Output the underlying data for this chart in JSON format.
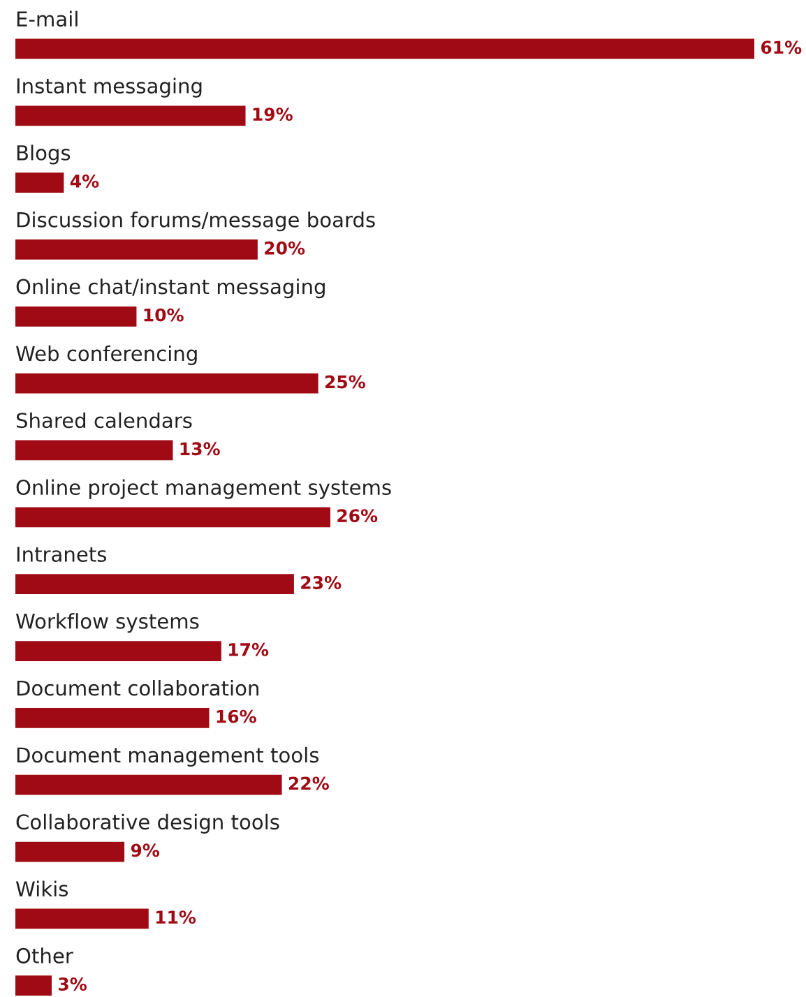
{
  "chart_data": {
    "type": "bar",
    "orientation": "horizontal",
    "color": "#a00a14",
    "categories": [
      "E-mail",
      "Instant messaging",
      "Blogs",
      "Discussion forums/message boards",
      "Online chat/instant messaging",
      "Web conferencing",
      "Shared calendars",
      "Online project management systems",
      "Intranets",
      "Workflow systems",
      "Document collaboration",
      "Document management tools",
      "Collaborative design tools",
      "Wikis",
      "Other"
    ],
    "values": [
      61,
      19,
      4,
      20,
      10,
      25,
      13,
      26,
      23,
      17,
      16,
      22,
      9,
      11,
      3
    ],
    "value_labels": [
      "61%",
      "19%",
      "4%",
      "20%",
      "10%",
      "25%",
      "13%",
      "26%",
      "23%",
      "17%",
      "16%",
      "22%",
      "9%",
      "11%",
      "3%"
    ]
  }
}
